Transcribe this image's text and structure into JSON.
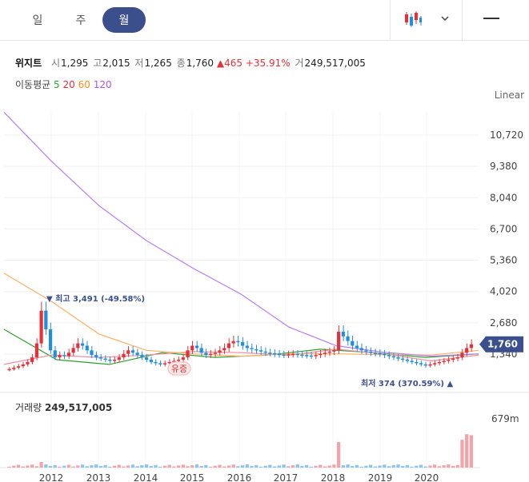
{
  "tabs": [
    {
      "label": "일",
      "active": false
    },
    {
      "label": "주",
      "active": false
    },
    {
      "label": "월",
      "active": true
    }
  ],
  "icons": {
    "chart_type": "candlestick-icon",
    "dropdown": "chevron-down-icon",
    "menu": "minus-icon"
  },
  "stock": {
    "name": "위지트",
    "open_label": "시",
    "open": "1,295",
    "high_label": "고",
    "high": "2,015",
    "low_label": "저",
    "low": "1,265",
    "close_label": "종",
    "close": "1,760",
    "change": "▲465",
    "change_pct": "+35.91%",
    "volume_label": "거",
    "volume": "249,517,005"
  },
  "moving_avg": {
    "label": "이동평균",
    "periods": [
      {
        "value": "5",
        "color": "#2ca02c"
      },
      {
        "value": "20",
        "color": "#e5313a"
      },
      {
        "value": "60",
        "color": "#ff8c1a"
      },
      {
        "value": "120",
        "color": "#a855f7"
      }
    ]
  },
  "scale_mode": "Linear",
  "colors": {
    "up": "#e5313a",
    "down": "#1f8fe0",
    "accent": "#3a4f8c",
    "vol_up": "#f4a3a8",
    "vol_down": "#8cc4f2"
  },
  "chart_data": {
    "type": "candlestick",
    "x_labels": [
      "2012",
      "2013",
      "2014",
      "2015",
      "2016",
      "2017",
      "2018",
      "2019",
      "2020"
    ],
    "y_ticks": [
      1340,
      2680,
      4020,
      5360,
      6700,
      8040,
      9380,
      10720
    ],
    "y_tick_labels": [
      "1,340",
      "2,680",
      "4,020",
      "5,360",
      "6,700",
      "8,040",
      "9,380",
      "10,720"
    ],
    "current_price": "1,760",
    "max_annotation": "▼ 최고 3,491 (-49.58%)",
    "min_annotation": "최저 374 (370.59%) ▲",
    "event_label": "유증",
    "ma_series": [
      {
        "period": "5",
        "values": [
          2400,
          1100,
          900,
          1400,
          1200,
          1300,
          1550,
          1400,
          1200,
          1350
        ]
      },
      {
        "period": "20",
        "values": [
          900,
          1300,
          1200,
          1300,
          1450,
          1400,
          1300,
          1550,
          1350,
          1050,
          1300
        ]
      },
      {
        "period": "60",
        "values": [
          4800,
          3600,
          2200,
          1500,
          1350,
          1250,
          1350,
          1350,
          1320,
          1300,
          1500
        ]
      },
      {
        "period": "120",
        "values": [
          11700,
          9600,
          7700,
          6200,
          5000,
          3900,
          2500,
          1700,
          1420,
          1250,
          1350
        ]
      }
    ],
    "volume_label": "거래량",
    "volume_value": "249,517,005",
    "volume_max_label": "679m"
  }
}
